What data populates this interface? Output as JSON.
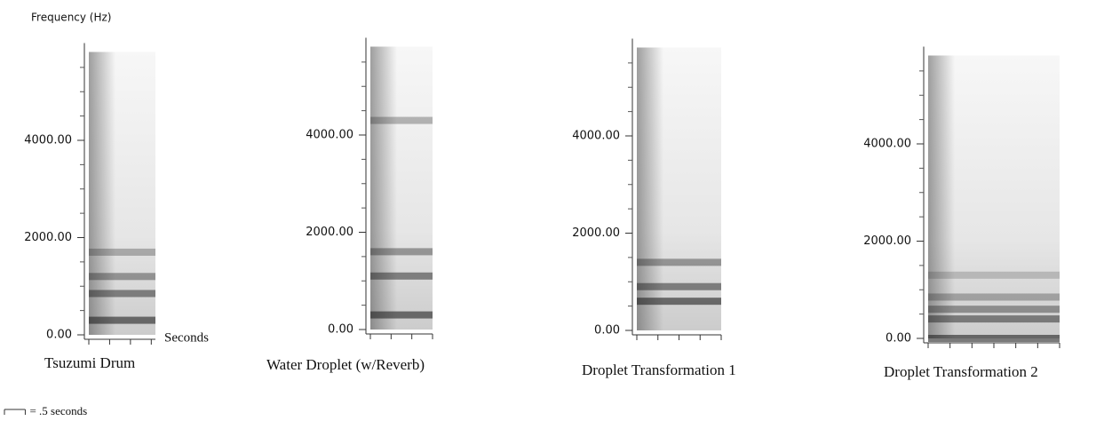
{
  "scale_note": "= .5 seconds",
  "chart_data": [
    {
      "type": "spectrogram",
      "title": "Tsuzumi Drum",
      "ylabel": "Frequency (Hz)",
      "xlabel": "Seconds",
      "ylim": [
        0,
        6000
      ],
      "yticks": [
        {
          "value": 0,
          "label": "0.00"
        },
        {
          "value": 2000,
          "label": "2000.00"
        },
        {
          "value": 4000,
          "label": "4000.00"
        }
      ],
      "yminorticks": [
        500,
        1000,
        1500,
        2500,
        3000,
        3500,
        4500,
        5000,
        5500
      ],
      "xlim": [
        0,
        1.6
      ],
      "xticks": [
        0,
        0.5,
        1,
        1.5
      ],
      "bands": [
        300,
        850,
        1200,
        1700
      ]
    },
    {
      "type": "spectrogram",
      "title": "Water Droplet (w/Reverb)",
      "ylim": [
        0,
        6000
      ],
      "yticks": [
        {
          "value": 0,
          "label": "0.00"
        },
        {
          "value": 2000,
          "label": "2000.00"
        },
        {
          "value": 4000,
          "label": "4000.00"
        }
      ],
      "yminorticks": [
        500,
        1000,
        1500,
        2500,
        3000,
        3500,
        4500,
        5000,
        5500
      ],
      "xlim": [
        0,
        1.5
      ],
      "xticks": [
        0,
        0.5,
        1,
        1.5
      ],
      "bands": [
        300,
        1100,
        1600,
        4300
      ]
    },
    {
      "type": "spectrogram",
      "title": "Droplet Transformation 1",
      "ylim": [
        0,
        6000
      ],
      "yticks": [
        {
          "value": 0,
          "label": "0.00"
        },
        {
          "value": 2000,
          "label": "2000.00"
        },
        {
          "value": 4000,
          "label": "4000.00"
        }
      ],
      "yminorticks": [
        500,
        1000,
        1500,
        2500,
        3000,
        3500,
        4500,
        5000,
        5500
      ],
      "xlim": [
        0,
        2
      ],
      "xticks": [
        0,
        0.5,
        1,
        1.5,
        2
      ],
      "bands": [
        600,
        900,
        1400
      ]
    },
    {
      "type": "spectrogram",
      "title": "Droplet Transformation 2",
      "ylim": [
        0,
        6000
      ],
      "yticks": [
        {
          "value": 0,
          "label": "0.00"
        },
        {
          "value": 2000,
          "label": "2000.00"
        },
        {
          "value": 4000,
          "label": "4000.00"
        }
      ],
      "yminorticks": [
        500,
        1000,
        1500,
        2500,
        3000,
        3500,
        4500,
        5000,
        5500
      ],
      "xlim": [
        0,
        3
      ],
      "xticks": [
        0,
        0.5,
        1,
        1.5,
        2,
        2.5,
        3
      ],
      "bands": [
        0,
        400,
        600,
        850,
        1300
      ]
    }
  ]
}
